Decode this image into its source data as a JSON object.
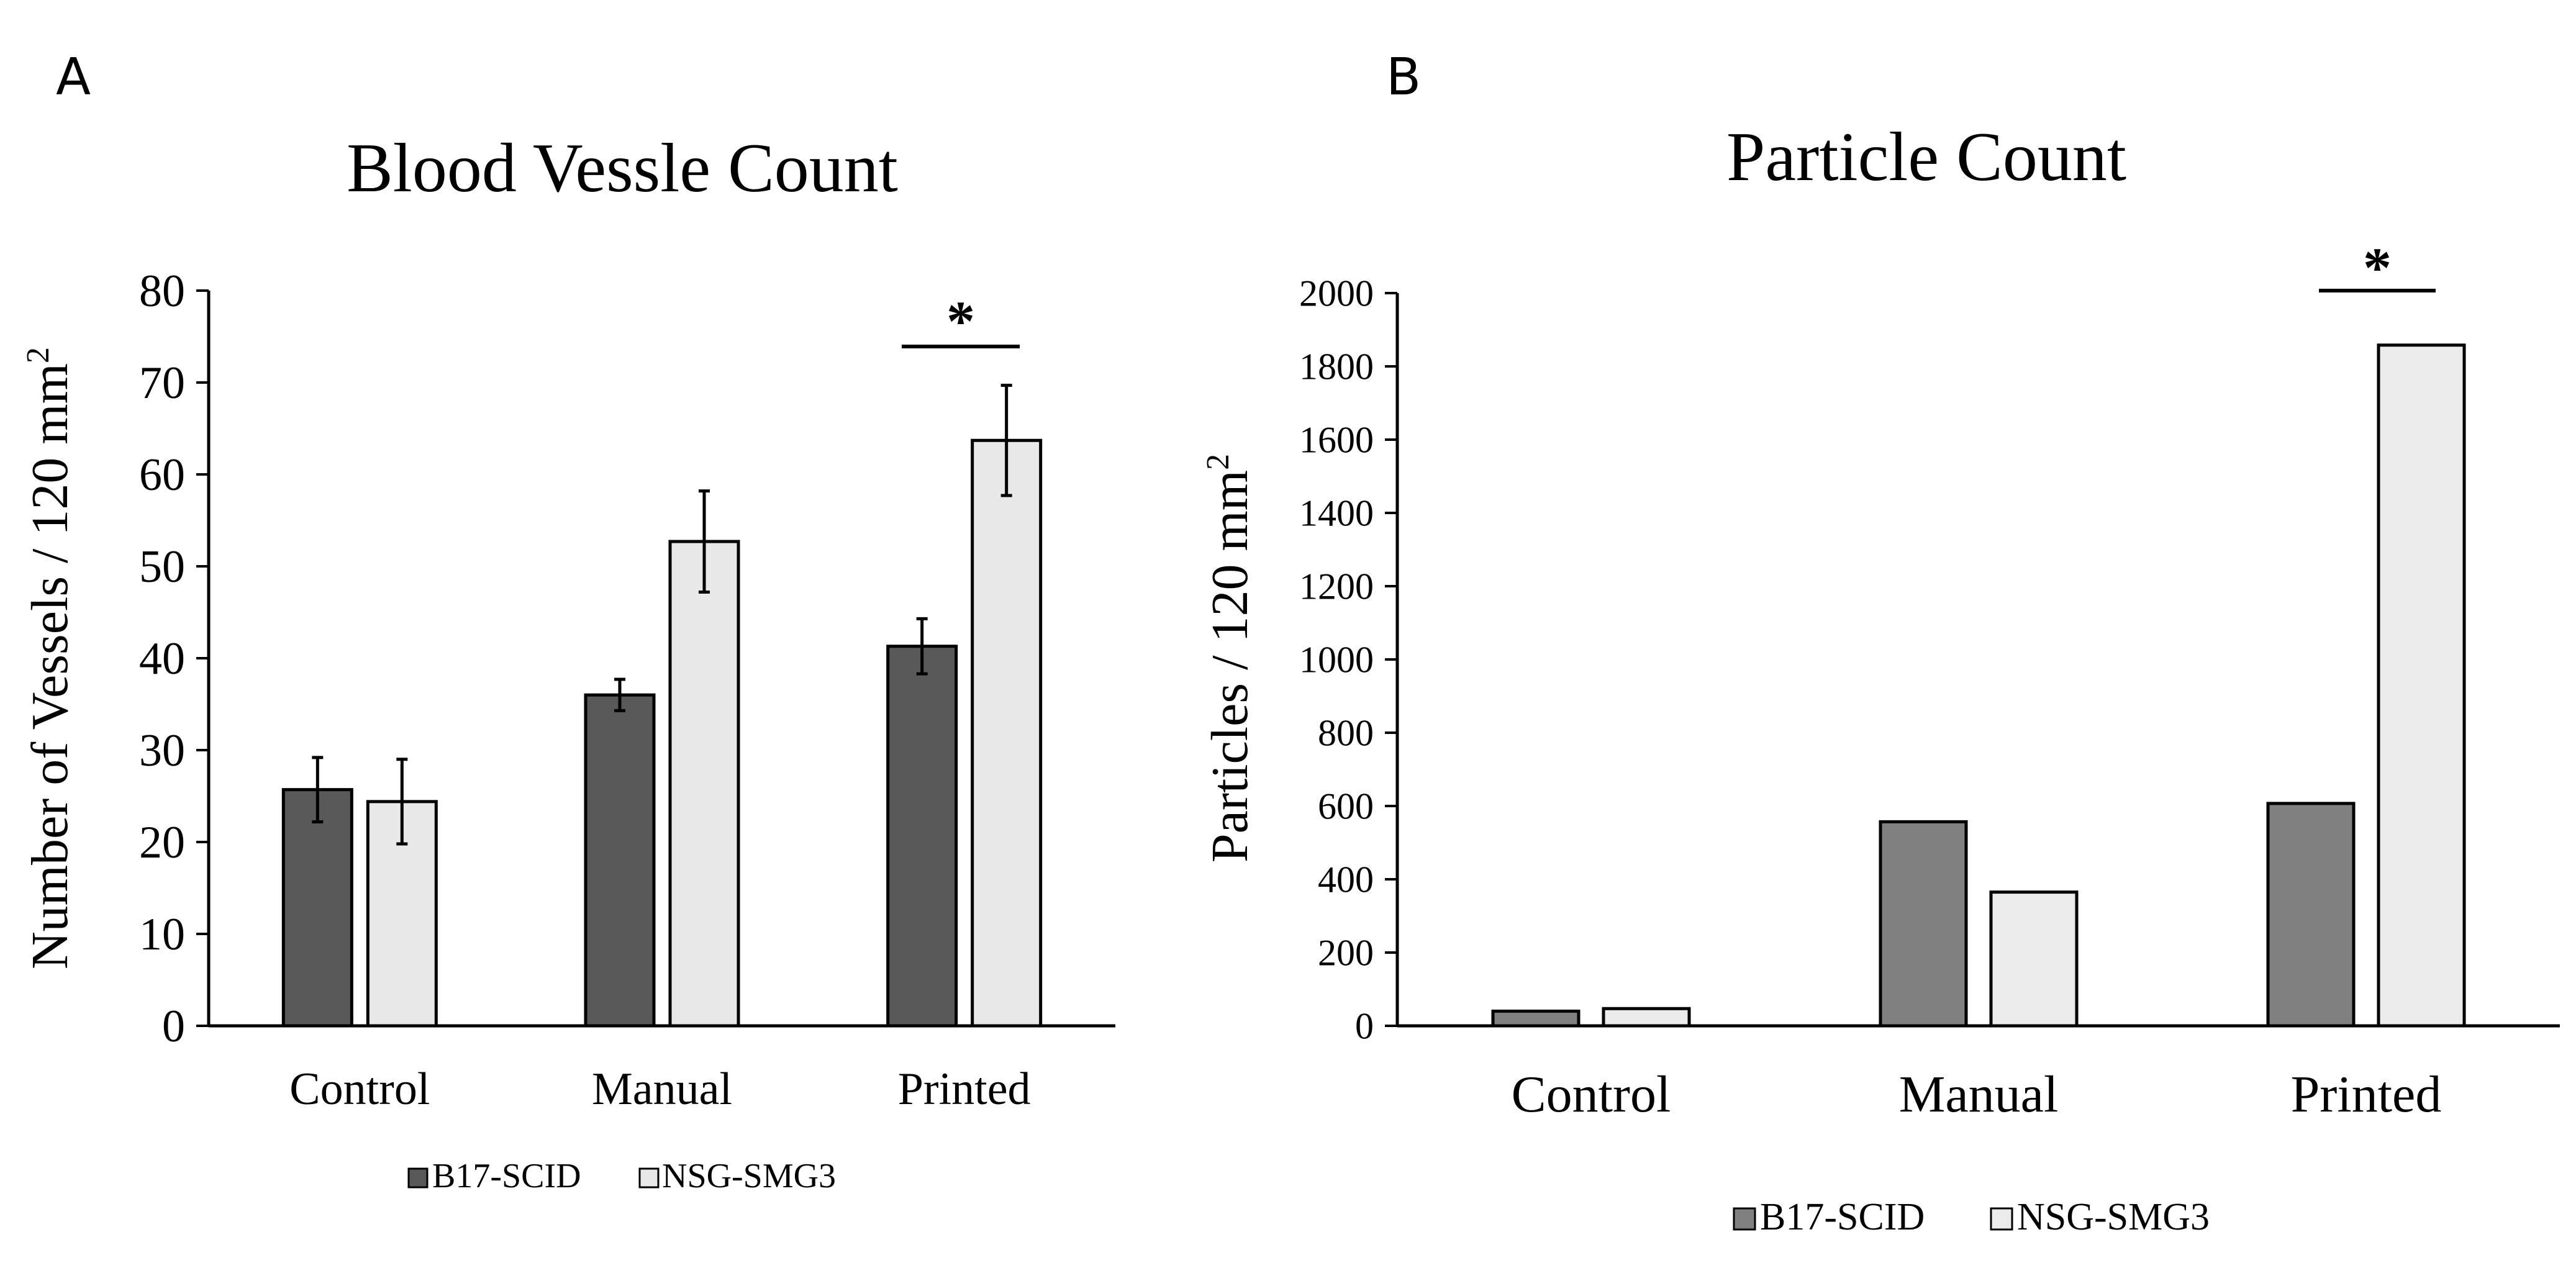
{
  "panel_labels": {
    "a": "A",
    "b": "B"
  },
  "chart_data": [
    {
      "type": "bar",
      "title": "Blood Vessle Count",
      "xlabel": "",
      "ylabel": "Number of Vessels / 120 mm",
      "ylabel_superscript": "2",
      "ylim": [
        0,
        80
      ],
      "yticks": [
        0,
        10,
        20,
        30,
        40,
        50,
        60,
        70,
        80
      ],
      "ytick_labels": [
        "0",
        "10",
        "20",
        "30",
        "40",
        "50",
        "60",
        "70",
        "80"
      ],
      "categories": [
        "Control",
        "Manual",
        "Printed"
      ],
      "series": [
        {
          "name": "B17-SCID",
          "color": "#595959",
          "values": [
            25.7,
            36.0,
            41.3
          ],
          "errors": [
            3.5,
            1.7,
            3.0
          ]
        },
        {
          "name": "NSG-SMG3",
          "color": "#e8e8e8",
          "values": [
            24.4,
            52.7,
            63.7
          ],
          "errors": [
            4.6,
            5.5,
            6.0
          ]
        }
      ],
      "significance": [
        {
          "category": "Printed",
          "label": "*"
        }
      ],
      "legend": {
        "placement": "bottom-center",
        "entries": [
          "B17-SCID",
          "NSG-SMG3"
        ]
      },
      "grid": false
    },
    {
      "type": "bar",
      "title": "Particle Count",
      "xlabel": "",
      "ylabel": "Particles / 120 mm",
      "ylabel_superscript": "2",
      "ylim": [
        0,
        2000
      ],
      "yticks": [
        0,
        200,
        400,
        600,
        800,
        1000,
        1200,
        1400,
        1600,
        1800,
        2000
      ],
      "ytick_labels": [
        "0",
        "200",
        "400",
        "600",
        "800",
        "1000",
        "1200",
        "1400",
        "1600",
        "1800",
        "2000"
      ],
      "categories": [
        "Control",
        "Manual",
        "Printed"
      ],
      "series": [
        {
          "name": "B17-SCID",
          "color": "#808080",
          "values": [
            40,
            557,
            607
          ]
        },
        {
          "name": "NSG-SMG3",
          "color": "#ebebeb",
          "values": [
            47,
            365,
            1858
          ]
        }
      ],
      "significance": [
        {
          "category": "Printed",
          "label": "*"
        }
      ],
      "legend": {
        "placement": "bottom-center",
        "entries": [
          "B17-SCID",
          "NSG-SMG3"
        ]
      },
      "grid": false
    }
  ]
}
